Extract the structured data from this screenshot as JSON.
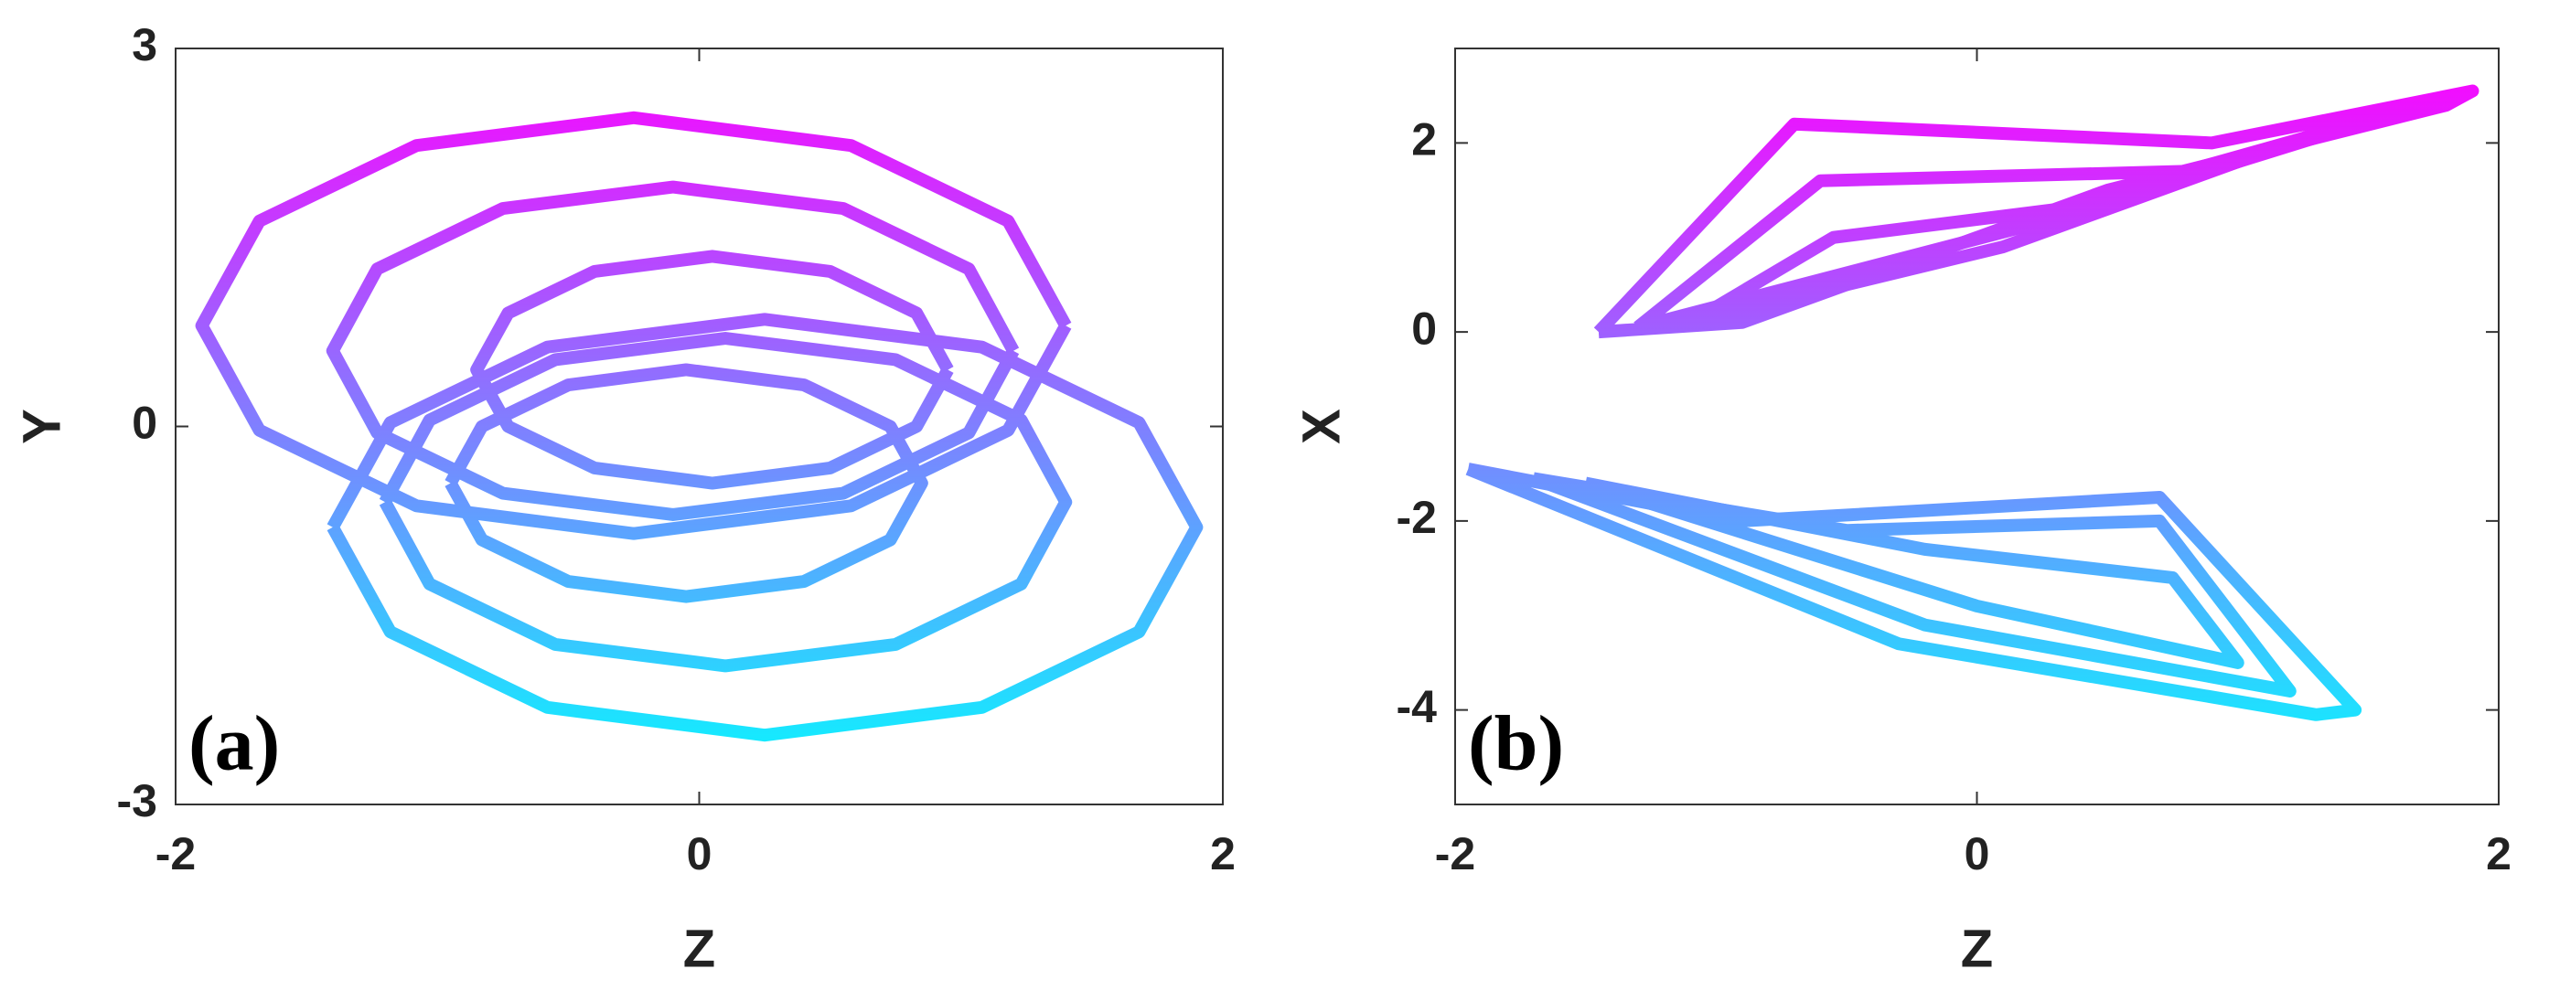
{
  "chart_data": [
    {
      "type": "line",
      "x_label": "Z",
      "y_label": "Y",
      "panel_label": "(a)",
      "xlim": [
        -2,
        2
      ],
      "ylim": [
        -3,
        3
      ],
      "xticks": [
        -2,
        0,
        2
      ],
      "yticks": [
        -3,
        0,
        3
      ],
      "colormap": [
        "#ff00ff",
        "#00ffff"
      ],
      "series": [
        {
          "x": [
            1.4,
            1.18,
            0.58,
            -0.25,
            -1.08,
            -1.68,
            -1.9,
            -1.68,
            -1.08,
            -0.25,
            0.58,
            1.18,
            1.4
          ],
          "values": [
            0.8,
            1.63,
            2.23,
            2.45,
            2.23,
            1.63,
            0.8,
            -0.03,
            -0.63,
            -0.85,
            -0.63,
            -0.03,
            0.8
          ]
        },
        {
          "x": [
            1.2,
            1.03,
            0.55,
            -0.1,
            -0.75,
            -1.23,
            -1.4,
            -1.23,
            -0.75,
            -0.1,
            0.55,
            1.03,
            1.2
          ],
          "values": [
            0.6,
            1.25,
            1.73,
            1.9,
            1.73,
            1.25,
            0.6,
            -0.05,
            -0.53,
            -0.7,
            -0.53,
            -0.05,
            0.6
          ]
        },
        {
          "x": [
            0.95,
            0.83,
            0.5,
            0.05,
            -0.4,
            -0.73,
            -0.85,
            -0.73,
            -0.4,
            0.05,
            0.5,
            0.83,
            0.95
          ],
          "values": [
            0.45,
            0.9,
            1.23,
            1.35,
            1.23,
            0.9,
            0.45,
            0,
            -0.33,
            -0.45,
            -0.33,
            0,
            0.45
          ]
        },
        {
          "x": [
            -1.4,
            -1.18,
            -0.58,
            0.25,
            1.08,
            1.68,
            1.9,
            1.68,
            1.08,
            0.25,
            -0.58,
            -1.18,
            -1.4
          ],
          "values": [
            -0.8,
            -1.63,
            -2.23,
            -2.45,
            -2.23,
            -1.63,
            -0.8,
            0.03,
            0.63,
            0.85,
            0.63,
            0.03,
            -0.8
          ]
        },
        {
          "x": [
            -1.2,
            -1.03,
            -0.55,
            0.1,
            0.75,
            1.23,
            1.4,
            1.23,
            0.75,
            0.1,
            -0.55,
            -1.03,
            -1.2
          ],
          "values": [
            -0.6,
            -1.25,
            -1.73,
            -1.9,
            -1.73,
            -1.25,
            -0.6,
            0.05,
            0.53,
            0.7,
            0.53,
            0.05,
            -0.6
          ]
        },
        {
          "x": [
            -0.95,
            -0.83,
            -0.5,
            -0.05,
            0.4,
            0.73,
            0.85,
            0.73,
            0.4,
            -0.05,
            -0.5,
            -0.83,
            -0.95
          ],
          "values": [
            -0.45,
            -0.9,
            -1.23,
            -1.35,
            -1.23,
            -0.9,
            -0.45,
            0,
            0.33,
            0.45,
            0.33,
            0,
            -0.45
          ]
        }
      ]
    },
    {
      "type": "line",
      "x_label": "Z",
      "y_label": "X",
      "panel_label": "(b)",
      "xlim": [
        -2,
        2
      ],
      "ylim": [
        -5,
        3
      ],
      "xticks": [
        -2,
        0,
        2
      ],
      "yticks": [
        -4,
        -2,
        0,
        2
      ],
      "colormap": [
        "#ff00ff",
        "#00ffff"
      ],
      "series": [
        {
          "x": [
            -1.45,
            -0.7,
            0.9,
            1.9,
            1.8,
            0.5,
            -0.9,
            -1.45
          ],
          "values": [
            0,
            2.2,
            2.0,
            2.55,
            2.4,
            1.5,
            0.1,
            0
          ]
        },
        {
          "x": [
            -1.3,
            -0.6,
            0.8,
            1.7,
            0.3,
            -1.3
          ],
          "values": [
            0.05,
            1.6,
            1.7,
            2.4,
            1.2,
            0.05
          ]
        },
        {
          "x": [
            -1.1,
            -0.55,
            0.6,
            1.5,
            0.1,
            -1.1
          ],
          "values": [
            0.1,
            1.0,
            1.4,
            2.3,
            0.9,
            0.1
          ]
        },
        {
          "x": [
            -1.95,
            -0.9,
            0.7,
            1.45,
            1.3,
            -0.3,
            -1.95
          ],
          "values": [
            -1.45,
            -2.0,
            -1.75,
            -4.0,
            -4.05,
            -3.3,
            -1.45
          ]
        },
        {
          "x": [
            -1.7,
            -0.5,
            0.7,
            1.2,
            -0.2,
            -1.7
          ],
          "values": [
            -1.55,
            -2.1,
            -2.0,
            -3.8,
            -3.1,
            -1.55
          ]
        },
        {
          "x": [
            -1.5,
            -0.2,
            0.75,
            1.0,
            0.0,
            -1.5
          ],
          "values": [
            -1.6,
            -2.3,
            -2.6,
            -3.5,
            -2.9,
            -1.6
          ]
        }
      ]
    }
  ]
}
